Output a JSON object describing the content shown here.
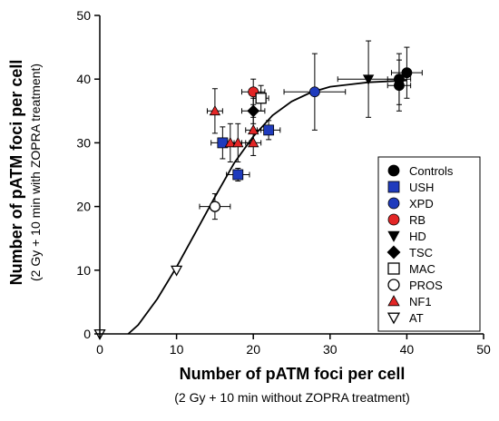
{
  "chart_data": {
    "type": "scatter",
    "xlabel": "Number of pATM foci per cell",
    "xlabel_sub": "(2 Gy + 10 min without ZOPRA treatment)",
    "ylabel": "Number of pATM foci per cell",
    "ylabel_sub": "(2 Gy + 10 min with ZOPRA treatment)",
    "xlim": [
      0,
      50
    ],
    "ylim": [
      0,
      50
    ],
    "x_ticks": [
      "0",
      "10",
      "20",
      "30",
      "40",
      "50"
    ],
    "y_ticks": [
      "0",
      "10",
      "20",
      "30",
      "40",
      "50"
    ],
    "grid": false,
    "legend_position": "right",
    "fit_curve": {
      "type": "sigmoid",
      "points": [
        [
          3.7,
          0
        ],
        [
          5,
          1.4
        ],
        [
          7.5,
          5.5
        ],
        [
          10,
          10.5
        ],
        [
          12.5,
          16
        ],
        [
          15,
          21.5
        ],
        [
          17.5,
          26.8
        ],
        [
          20,
          31
        ],
        [
          22.5,
          34.3
        ],
        [
          25,
          36.5
        ],
        [
          27.5,
          37.9
        ],
        [
          30,
          38.8
        ],
        [
          35,
          39.5
        ],
        [
          40,
          39.8
        ]
      ]
    },
    "series": [
      {
        "name": "Controls",
        "marker": "circle",
        "color": "#000000",
        "points": [
          {
            "x": 39,
            "y": 39,
            "xerr": 1.5,
            "yerr": 4
          },
          {
            "x": 39,
            "y": 40,
            "xerr": 1.5,
            "yerr": 4
          },
          {
            "x": 40,
            "y": 41,
            "xerr": 2,
            "yerr": 4
          }
        ]
      },
      {
        "name": "USH",
        "marker": "square",
        "color": "#1f3bbd",
        "points": [
          {
            "x": 16,
            "y": 30,
            "xerr": 1.5,
            "yerr": 2.5
          },
          {
            "x": 18,
            "y": 25,
            "xerr": 1.5,
            "yerr": 1
          },
          {
            "x": 22,
            "y": 32,
            "xerr": 1.5,
            "yerr": 1.5
          }
        ]
      },
      {
        "name": "XPD",
        "marker": "circle",
        "color": "#1f3bbd",
        "points": [
          {
            "x": 28,
            "y": 38,
            "xerr": 4,
            "yerr": 6
          }
        ]
      },
      {
        "name": "RB",
        "marker": "circle",
        "color": "#e32626",
        "points": [
          {
            "x": 20,
            "y": 38,
            "xerr": 1.5,
            "yerr": 2
          }
        ]
      },
      {
        "name": "HD",
        "marker": "triangle-down",
        "color": "#000000",
        "points": [
          {
            "x": 35,
            "y": 40,
            "xerr": 4,
            "yerr": 6
          }
        ]
      },
      {
        "name": "TSC",
        "marker": "diamond",
        "color": "#000000",
        "points": [
          {
            "x": 20,
            "y": 35,
            "xerr": 1.5,
            "yerr": 2
          }
        ]
      },
      {
        "name": "MAC",
        "marker": "square-open",
        "color": "#000000",
        "points": [
          {
            "x": 21,
            "y": 37,
            "xerr": 1,
            "yerr": 2
          }
        ]
      },
      {
        "name": "PROS",
        "marker": "circle-open",
        "color": "#000000",
        "points": [
          {
            "x": 15,
            "y": 20,
            "xerr": 2,
            "yerr": 2
          }
        ]
      },
      {
        "name": "NF1",
        "marker": "triangle-up",
        "color": "#e32626",
        "points": [
          {
            "x": 15,
            "y": 35,
            "xerr": 1,
            "yerr": 3.5
          },
          {
            "x": 17,
            "y": 30,
            "xerr": 1.5,
            "yerr": 3
          },
          {
            "x": 18,
            "y": 30,
            "xerr": 1.5,
            "yerr": 3
          },
          {
            "x": 20,
            "y": 30,
            "xerr": 1,
            "yerr": 2
          },
          {
            "x": 20,
            "y": 32,
            "xerr": 1,
            "yerr": 2
          }
        ]
      },
      {
        "name": "AT",
        "marker": "triangle-down-open",
        "color": "#000000",
        "points": [
          {
            "x": 0,
            "y": 0,
            "xerr": 0,
            "yerr": 0
          },
          {
            "x": 10,
            "y": 10,
            "xerr": 0,
            "yerr": 0
          }
        ]
      }
    ]
  }
}
